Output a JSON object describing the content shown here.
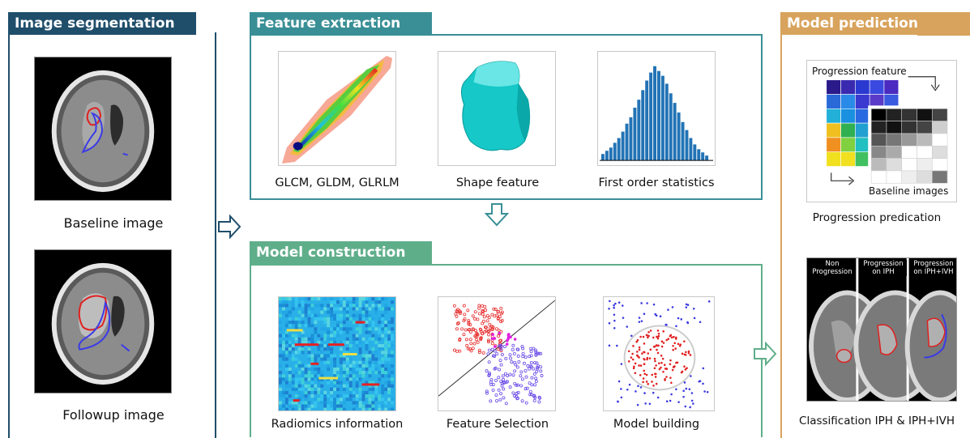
{
  "panels": {
    "segmentation": {
      "title": "Image segmentation",
      "color": "#1f4e6b",
      "baseline_caption": "Baseline image",
      "followup_caption": "Followup image"
    },
    "feature_extraction": {
      "title": "Feature extraction",
      "color": "#3a8f96",
      "items": [
        {
          "caption": "GLCM, GLDM, GLRLM"
        },
        {
          "caption": "Shape feature"
        },
        {
          "caption": "First order statistics"
        }
      ]
    },
    "model_construction": {
      "title": "Model construction",
      "color": "#5fae8a",
      "items": [
        {
          "caption": "Radiomics information"
        },
        {
          "caption": "Feature Selection"
        },
        {
          "caption": "Model building"
        }
      ]
    },
    "model_prediction": {
      "title": "Model prediction",
      "color": "#d8a35c",
      "heatmap_top_label": "Progression feature",
      "heatmap_bottom_label": "Baseline images",
      "progression_caption": "Progression predication",
      "classification_caption": "Classification IPH & IPH+IVH",
      "ct_labels": [
        "Non Progression",
        "Progression on IPH",
        "Progression on IPH+IVH"
      ]
    }
  },
  "arrow_color": "#3a8f96"
}
